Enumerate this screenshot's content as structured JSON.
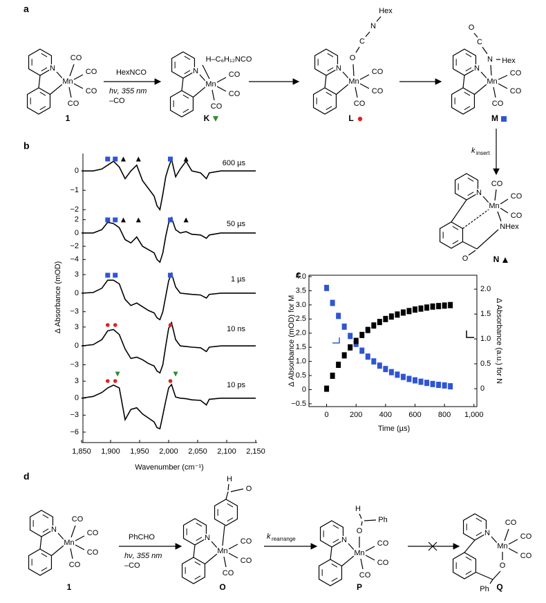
{
  "figure": {
    "panel_a": {
      "label": "a",
      "compounds": [
        {
          "id": "1",
          "atoms": [
            "N",
            "Mn",
            "CO",
            "CO",
            "CO",
            "CO"
          ]
        },
        {
          "id": "K",
          "atoms": [
            "N",
            "Mn",
            "H–C₆H₁₂NCO",
            "CO",
            "CO",
            "CO"
          ],
          "marker": {
            "shape": "triangle-down",
            "color": "#2e8b2e"
          }
        },
        {
          "id": "L",
          "atoms": [
            "N",
            "Mn",
            "O",
            "C",
            "N",
            "Hex",
            "CO",
            "CO",
            "CO"
          ],
          "marker": {
            "shape": "circle",
            "color": "#e0201b"
          }
        },
        {
          "id": "M",
          "atoms": [
            "N",
            "Mn",
            "O",
            "C",
            "N",
            "Hex",
            "CO",
            "CO",
            "CO"
          ],
          "marker": {
            "shape": "square",
            "color": "#2f55d4"
          }
        },
        {
          "id": "N",
          "atoms": [
            "N",
            "Mn",
            "CO",
            "CO",
            "CO",
            "NHex",
            "O"
          ],
          "marker": {
            "shape": "triangle",
            "color": "#000000"
          }
        }
      ],
      "reagent": "HexNCO",
      "conditions": "hν, 355 nm",
      "loss": "–CO",
      "rate": "k",
      "rate_sub": "insert"
    },
    "panel_d": {
      "label": "d",
      "compounds": [
        {
          "id": "1",
          "atoms": [
            "N",
            "Mn",
            "CO",
            "CO",
            "CO",
            "CO"
          ]
        },
        {
          "id": "O",
          "atoms": [
            "N",
            "Mn",
            "CO",
            "CO",
            "CO",
            "H",
            "O"
          ]
        },
        {
          "id": "P",
          "atoms": [
            "N",
            "Mn",
            "O",
            "H",
            "Ph",
            "CO",
            "CO",
            "CO"
          ]
        },
        {
          "id": "Q",
          "atoms": [
            "N",
            "Mn",
            "CO",
            "CO",
            "CO",
            "O",
            "Ph"
          ]
        }
      ],
      "reagent": "PhCHO",
      "conditions": "hν, 355 nm",
      "loss": "–CO",
      "rate": "k",
      "rate_sub": "rearrange"
    }
  },
  "chart_data": [
    {
      "type": "stacked-line",
      "panel_label": "b",
      "xlabel": "Wavenumber (cm⁻¹)",
      "ylabel": "Δ Absorbance (mOD)",
      "color": "#000000",
      "xlim": [
        1850,
        2150
      ],
      "xticks": [
        {
          "value": 1850,
          "label": "1,850"
        },
        {
          "value": 1900,
          "label": "1,900"
        },
        {
          "value": 1950,
          "label": "1,950"
        },
        {
          "value": 2000,
          "label": "2,000"
        },
        {
          "value": 2050,
          "label": "2,050"
        },
        {
          "value": 2100,
          "label": "2,100"
        },
        {
          "value": 2150,
          "label": "2,150"
        }
      ],
      "panels": [
        {
          "label": "600 µs",
          "ylim": [
            -2.1,
            0.9
          ],
          "yticks": [
            0,
            {
              "value": -1,
              "label": "−1"
            },
            {
              "value": -2,
              "label": "−2"
            }
          ],
          "x": [
            1850,
            1870,
            1885,
            1895,
            1905,
            1915,
            1925,
            1935,
            1945,
            1955,
            1965,
            1975,
            1980,
            1985,
            1990,
            1995,
            2000,
            2005,
            2012,
            2020,
            2030,
            2040,
            2055,
            2065,
            2070,
            2090,
            2120,
            2150
          ],
          "values": [
            0,
            0,
            0.1,
            0.3,
            0.5,
            0.2,
            -0.4,
            0,
            0.3,
            -0.5,
            -0.9,
            -1.3,
            -1.8,
            -2,
            -1.2,
            -0.3,
            0.2,
            0.6,
            -0.3,
            0.1,
            0.5,
            0,
            -0.1,
            -0.4,
            -0.1,
            0,
            0,
            0
          ],
          "markers": [
            {
              "x": 1895,
              "shape": "square",
              "color": "#2f55d4"
            },
            {
              "x": 1908,
              "shape": "square",
              "color": "#2f55d4"
            },
            {
              "x": 1922,
              "shape": "triangle",
              "color": "#000000"
            },
            {
              "x": 1948,
              "shape": "triangle",
              "color": "#000000"
            },
            {
              "x": 2003,
              "shape": "square",
              "color": "#2f55d4"
            },
            {
              "x": 2030,
              "shape": "triangle",
              "color": "#000000"
            }
          ]
        },
        {
          "label": "50 µs",
          "ylim": [
            -4.8,
            2.8
          ],
          "yticks": [
            2,
            0,
            {
              "value": -2,
              "label": "−2"
            },
            {
              "value": -4,
              "label": "−4"
            }
          ],
          "x": [
            1850,
            1870,
            1885,
            1895,
            1905,
            1915,
            1925,
            1935,
            1945,
            1955,
            1965,
            1975,
            1980,
            1985,
            1990,
            1995,
            2000,
            2005,
            2012,
            2020,
            2030,
            2040,
            2055,
            2065,
            2070,
            2090,
            2120,
            2150
          ],
          "values": [
            0,
            0,
            0.5,
            1.6,
            1.4,
            0.8,
            -1,
            -1.5,
            -0.6,
            -2,
            -2.5,
            -3,
            -4,
            -4.4,
            -3,
            -0.5,
            1.5,
            2.3,
            0.5,
            0,
            0.2,
            -0.2,
            -0.3,
            -0.8,
            -0.3,
            0,
            0,
            0
          ],
          "markers": [
            {
              "x": 1895,
              "shape": "square",
              "color": "#2f55d4"
            },
            {
              "x": 1908,
              "shape": "square",
              "color": "#2f55d4"
            },
            {
              "x": 1922,
              "shape": "triangle",
              "color": "#000000"
            },
            {
              "x": 1948,
              "shape": "triangle",
              "color": "#000000"
            },
            {
              "x": 2003,
              "shape": "square",
              "color": "#2f55d4"
            },
            {
              "x": 2030,
              "shape": "triangle",
              "color": "#000000"
            }
          ]
        },
        {
          "label": "1 µs",
          "ylim": [
            -4.6,
            3.8
          ],
          "yticks": [
            3,
            0,
            {
              "value": -3,
              "label": "−3"
            }
          ],
          "x": [
            1850,
            1870,
            1885,
            1895,
            1905,
            1915,
            1925,
            1935,
            1945,
            1955,
            1965,
            1975,
            1980,
            1985,
            1990,
            1995,
            2000,
            2005,
            2012,
            2020,
            2030,
            2040,
            2055,
            2065,
            2070,
            2090,
            2120,
            2150
          ],
          "values": [
            0,
            0.1,
            0.8,
            2.1,
            2.1,
            1.5,
            -1,
            -2,
            -1.6,
            -2.2,
            -2.8,
            -3.2,
            -4,
            -4.3,
            -3,
            -0.5,
            2,
            3.2,
            1,
            0,
            -0.1,
            -0.2,
            -0.3,
            -0.8,
            -0.2,
            0,
            0,
            0
          ],
          "markers": [
            {
              "x": 1895,
              "shape": "square",
              "color": "#2f55d4"
            },
            {
              "x": 1908,
              "shape": "square",
              "color": "#2f55d4"
            },
            {
              "x": 2003,
              "shape": "square",
              "color": "#2f55d4"
            }
          ]
        },
        {
          "label": "10 ns",
          "ylim": [
            -4.6,
            4.2
          ],
          "yticks": [
            3,
            0,
            {
              "value": -3,
              "label": "−3"
            }
          ],
          "x": [
            1850,
            1870,
            1885,
            1895,
            1905,
            1915,
            1925,
            1935,
            1945,
            1955,
            1965,
            1975,
            1980,
            1985,
            1990,
            1995,
            2000,
            2005,
            2012,
            2020,
            2030,
            2040,
            2055,
            2065,
            2070,
            2090,
            2120,
            2150
          ],
          "values": [
            0,
            0.2,
            1,
            2.4,
            2.6,
            1.8,
            -0.5,
            -2,
            -1.8,
            -2.2,
            -2.8,
            -3.2,
            -4,
            -4.3,
            -3,
            0,
            2.8,
            3.7,
            1,
            0,
            -0.1,
            -0.2,
            -0.3,
            -0.9,
            -0.2,
            0,
            0,
            0
          ],
          "markers": [
            {
              "x": 1895,
              "shape": "circle",
              "color": "#e0201b"
            },
            {
              "x": 1908,
              "shape": "circle",
              "color": "#e0201b"
            },
            {
              "x": 2003,
              "shape": "circle",
              "color": "#e0201b"
            }
          ]
        },
        {
          "label": "10 ps",
          "ylim": [
            -6.5,
            4
          ],
          "yticks": [
            3,
            0,
            {
              "value": -3,
              "label": "−3"
            },
            {
              "value": -6,
              "label": "−6"
            }
          ],
          "x": [
            1850,
            1870,
            1885,
            1895,
            1905,
            1915,
            1925,
            1935,
            1945,
            1955,
            1965,
            1975,
            1980,
            1985,
            1990,
            1995,
            2000,
            2005,
            2012,
            2020,
            2030,
            2040,
            2055,
            2065,
            2070,
            2090,
            2120,
            2150
          ],
          "values": [
            0,
            0.3,
            1,
            1.8,
            2.3,
            1.8,
            -3.8,
            -2,
            -1.7,
            -2.8,
            -3.5,
            -4.2,
            -5.2,
            -5.4,
            -3,
            -0.5,
            1.8,
            2.4,
            0.2,
            0,
            -0.1,
            -0.3,
            -0.4,
            -1.2,
            -0.2,
            0,
            0,
            0
          ],
          "markers": [
            {
              "x": 1895,
              "shape": "circle",
              "color": "#e0201b"
            },
            {
              "x": 1908,
              "shape": "circle",
              "color": "#e0201b"
            },
            {
              "x": 1912,
              "shape": "triangle-down",
              "color": "#2e8b2e"
            },
            {
              "x": 2003,
              "shape": "circle",
              "color": "#e0201b"
            },
            {
              "x": 2012,
              "shape": "triangle-down",
              "color": "#2e8b2e"
            }
          ]
        }
      ]
    },
    {
      "type": "scatter",
      "panel_label": "c",
      "xlabel": "Time (µs)",
      "ylabel": "Δ Absorbance (mOD) for M",
      "y2label": "Δ Absorbance (a.u.) for N",
      "xlim": [
        -120,
        1020
      ],
      "xticks": [
        0,
        200,
        400,
        600,
        800,
        {
          "value": 1000,
          "label": "1,000"
        }
      ],
      "ylim": [
        -0.6,
        4.05
      ],
      "yticks": [
        {
          "value": -0.5,
          "label": "−0.5"
        },
        0,
        0.5,
        {
          "value": 1,
          "label": "1.0"
        },
        1.5,
        {
          "value": 2,
          "label": "2.0"
        },
        2.5,
        {
          "value": 3,
          "label": "3.0"
        },
        3.5,
        {
          "value": 4,
          "label": "4.0"
        }
      ],
      "y2lim": [
        -0.36,
        2.28
      ],
      "y2ticks": [
        0,
        0.5,
        {
          "value": 1,
          "label": "1.0"
        },
        1.5,
        {
          "value": 2,
          "label": "2.0"
        }
      ],
      "x": [
        0,
        40,
        80,
        120,
        160,
        200,
        240,
        280,
        320,
        360,
        400,
        440,
        480,
        520,
        560,
        600,
        640,
        680,
        720,
        760,
        800,
        840
      ],
      "series": [
        {
          "color": "#2f55d4",
          "values": [
            3.6,
            3.07,
            2.61,
            2.23,
            1.9,
            1.62,
            1.38,
            1.17,
            1.0,
            0.85,
            0.73,
            0.62,
            0.53,
            0.45,
            0.38,
            0.33,
            0.28,
            0.24,
            0.2,
            0.17,
            0.15,
            0.12
          ]
        },
        {
          "color": "#000000",
          "axis": "y2",
          "values": [
            0,
            0.26,
            0.48,
            0.67,
            0.83,
            0.96,
            1.08,
            1.18,
            1.27,
            1.34,
            1.4,
            1.45,
            1.49,
            1.53,
            1.56,
            1.59,
            1.61,
            1.63,
            1.65,
            1.66,
            1.67,
            1.68
          ]
        }
      ]
    }
  ]
}
